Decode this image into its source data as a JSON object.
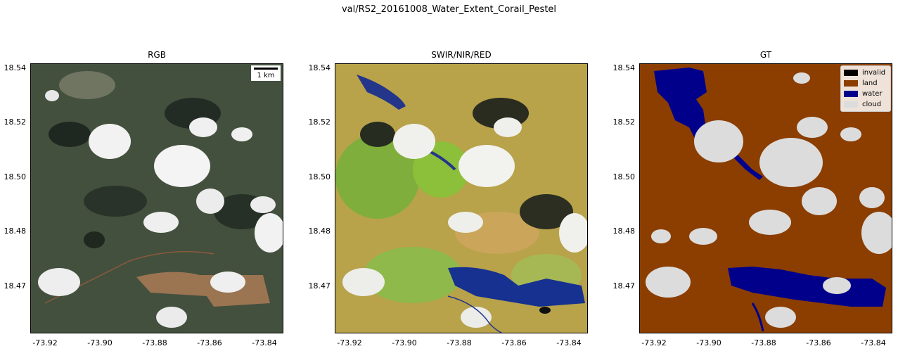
{
  "figure": {
    "suptitle": "val/RS2_20161008_Water_Extent_Corail_Pestel"
  },
  "panels": [
    {
      "title": "RGB"
    },
    {
      "title": "SWIR/NIR/RED"
    },
    {
      "title": "GT"
    }
  ],
  "axes": {
    "y_ticks": [
      "18.54",
      "18.52",
      "18.50",
      "18.48",
      "18.47"
    ],
    "x_ticks": [
      "-73.92",
      "-73.90",
      "-73.88",
      "-73.86",
      "-73.84"
    ]
  },
  "scalebar": {
    "label": "1 km"
  },
  "legend": {
    "items": [
      {
        "label": "invalid",
        "color": "#000000"
      },
      {
        "label": "land",
        "color": "#8b3e00"
      },
      {
        "label": "water",
        "color": "#00008b"
      },
      {
        "label": "cloud",
        "color": "#dcdcdc"
      }
    ]
  },
  "colors": {
    "rgb_base": "#3d4a3a",
    "swir_base": "#b8a34a",
    "gt_land": "#8b3e00",
    "gt_water": "#00008b",
    "gt_cloud": "#dcdcdc"
  }
}
